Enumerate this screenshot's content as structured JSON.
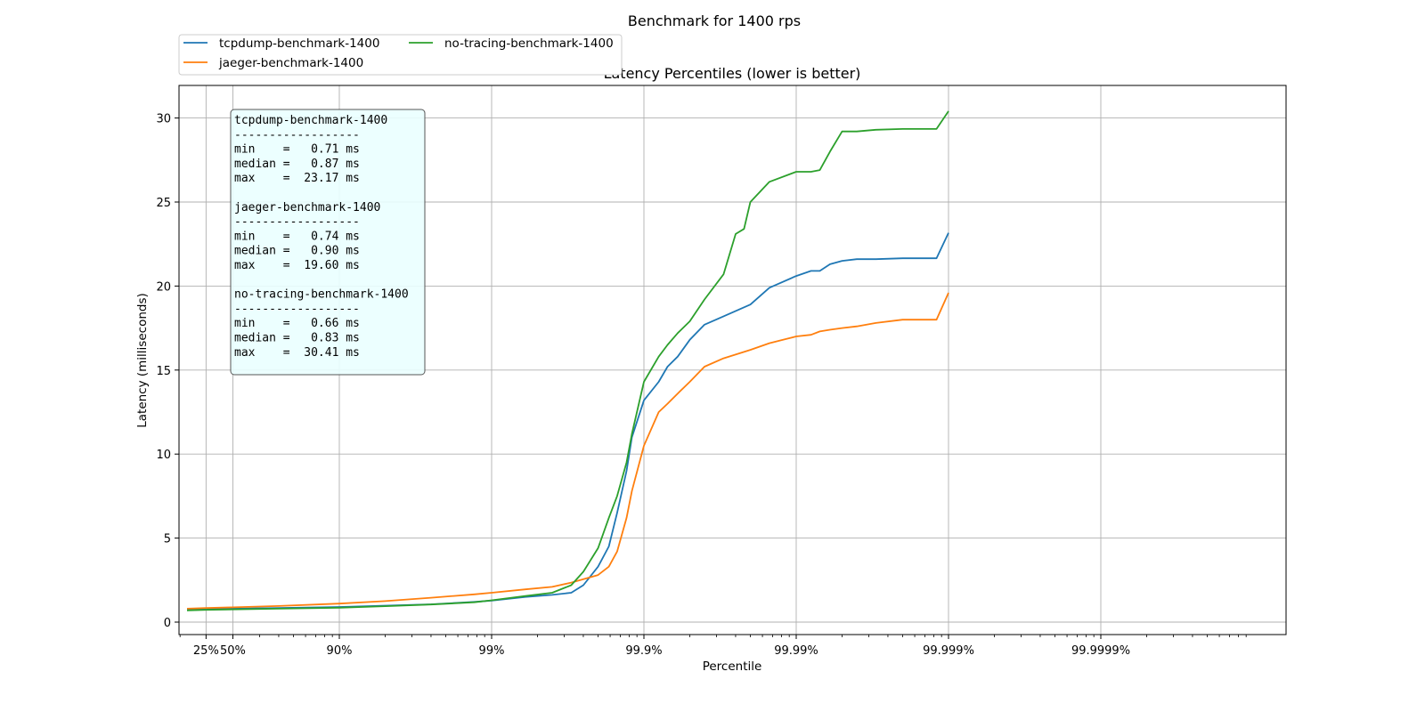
{
  "chart_data": {
    "type": "line",
    "title": "Benchmark for 1400 rps",
    "subtitle": "Latency Percentiles (lower is better)",
    "xlabel": "Percentile",
    "ylabel": "Latency (milliseconds)",
    "x_scale": "log of 1/(1 - percentile)",
    "x_ticks": [
      "25%",
      "50%",
      "90%",
      "99%",
      "99.9%",
      "99.99%",
      "99.999%",
      "99.9999%"
    ],
    "y_ticks": [
      "0",
      "5",
      "10",
      "15",
      "20",
      "25",
      "30"
    ],
    "ylim": [
      -0.8,
      32
    ],
    "grid": true,
    "legend_position": "top-left, above plot, 2 columns",
    "series": [
      {
        "name": "tcpdump-benchmark-1400",
        "color": "#1f77b4",
        "points": [
          [
            "0%",
            0.75
          ],
          [
            "25%",
            0.78
          ],
          [
            "50%",
            0.8
          ],
          [
            "75%",
            0.84
          ],
          [
            "90%",
            0.9
          ],
          [
            "95%",
            0.98
          ],
          [
            "97.5%",
            1.06
          ],
          [
            "98.7%",
            1.2
          ],
          [
            "99%",
            1.28
          ],
          [
            "99.4%",
            1.5
          ],
          [
            "99.6%",
            1.62
          ],
          [
            "99.7%",
            1.75
          ],
          [
            "99.75%",
            2.2
          ],
          [
            "99.8%",
            3.3
          ],
          [
            "99.83%",
            4.5
          ],
          [
            "99.85%",
            6.5
          ],
          [
            "99.87%",
            9.0
          ],
          [
            "99.88%",
            11.0
          ],
          [
            "99.9%",
            13.2
          ],
          [
            "99.92%",
            14.3
          ],
          [
            "99.93%",
            15.2
          ],
          [
            "99.94%",
            15.8
          ],
          [
            "99.95%",
            16.8
          ],
          [
            "99.96%",
            17.7
          ],
          [
            "99.97%",
            18.2
          ],
          [
            "99.98%",
            18.9
          ],
          [
            "99.985%",
            19.9
          ],
          [
            "99.99%",
            20.6
          ],
          [
            "99.992%",
            20.9
          ],
          [
            "99.993%",
            20.9
          ],
          [
            "99.994%",
            21.3
          ],
          [
            "99.995%",
            21.5
          ],
          [
            "99.996%",
            21.6
          ],
          [
            "99.997%",
            21.6
          ],
          [
            "99.998%",
            21.65
          ],
          [
            "99.9988%",
            21.65
          ],
          [
            "99.999%",
            23.17
          ]
        ]
      },
      {
        "name": "jaeger-benchmark-1400",
        "color": "#ff7f0e",
        "points": [
          [
            "0%",
            0.8
          ],
          [
            "25%",
            0.84
          ],
          [
            "50%",
            0.88
          ],
          [
            "75%",
            0.96
          ],
          [
            "90%",
            1.1
          ],
          [
            "95%",
            1.25
          ],
          [
            "97.5%",
            1.45
          ],
          [
            "98.7%",
            1.65
          ],
          [
            "99%",
            1.75
          ],
          [
            "99.4%",
            1.95
          ],
          [
            "99.6%",
            2.1
          ],
          [
            "99.7%",
            2.35
          ],
          [
            "99.8%",
            2.8
          ],
          [
            "99.83%",
            3.3
          ],
          [
            "99.85%",
            4.2
          ],
          [
            "99.87%",
            6.2
          ],
          [
            "99.88%",
            7.8
          ],
          [
            "99.9%",
            10.5
          ],
          [
            "99.92%",
            12.5
          ],
          [
            "99.93%",
            13.0
          ],
          [
            "99.94%",
            13.6
          ],
          [
            "99.95%",
            14.3
          ],
          [
            "99.96%",
            15.2
          ],
          [
            "99.97%",
            15.7
          ],
          [
            "99.98%",
            16.2
          ],
          [
            "99.985%",
            16.6
          ],
          [
            "99.99%",
            17.0
          ],
          [
            "99.992%",
            17.1
          ],
          [
            "99.993%",
            17.3
          ],
          [
            "99.994%",
            17.4
          ],
          [
            "99.995%",
            17.5
          ],
          [
            "99.996%",
            17.6
          ],
          [
            "99.997%",
            17.8
          ],
          [
            "99.998%",
            18.0
          ],
          [
            "99.9988%",
            18.0
          ],
          [
            "99.999%",
            19.6
          ]
        ]
      },
      {
        "name": "no-tracing-benchmark-1400",
        "color": "#2ca02c",
        "points": [
          [
            "0%",
            0.7
          ],
          [
            "25%",
            0.73
          ],
          [
            "50%",
            0.76
          ],
          [
            "75%",
            0.8
          ],
          [
            "90%",
            0.86
          ],
          [
            "95%",
            0.95
          ],
          [
            "97.5%",
            1.05
          ],
          [
            "98.7%",
            1.18
          ],
          [
            "99%",
            1.3
          ],
          [
            "99.4%",
            1.55
          ],
          [
            "99.6%",
            1.75
          ],
          [
            "99.7%",
            2.2
          ],
          [
            "99.75%",
            3.0
          ],
          [
            "99.8%",
            4.4
          ],
          [
            "99.83%",
            6.2
          ],
          [
            "99.85%",
            7.5
          ],
          [
            "99.87%",
            9.5
          ],
          [
            "99.88%",
            11.2
          ],
          [
            "99.9%",
            14.3
          ],
          [
            "99.92%",
            15.8
          ],
          [
            "99.93%",
            16.5
          ],
          [
            "99.94%",
            17.2
          ],
          [
            "99.95%",
            17.9
          ],
          [
            "99.96%",
            19.2
          ],
          [
            "99.97%",
            20.7
          ],
          [
            "99.975%",
            23.1
          ],
          [
            "99.978%",
            23.4
          ],
          [
            "99.98%",
            25.0
          ],
          [
            "99.985%",
            26.2
          ],
          [
            "99.99%",
            26.8
          ],
          [
            "99.992%",
            26.8
          ],
          [
            "99.993%",
            26.9
          ],
          [
            "99.994%",
            28.0
          ],
          [
            "99.995%",
            29.2
          ],
          [
            "99.996%",
            29.2
          ],
          [
            "99.997%",
            29.3
          ],
          [
            "99.998%",
            29.35
          ],
          [
            "99.9988%",
            29.35
          ],
          [
            "99.999%",
            30.41
          ]
        ]
      }
    ],
    "stats_box": [
      {
        "name": "tcpdump-benchmark-1400",
        "separator": "------------------",
        "min": "min    =   0.71 ms",
        "median": "median =   0.87 ms",
        "max": "max    =  23.17 ms"
      },
      {
        "name": "jaeger-benchmark-1400",
        "separator": "------------------",
        "min": "min    =   0.74 ms",
        "median": "median =   0.90 ms",
        "max": "max    =  19.60 ms"
      },
      {
        "name": "no-tracing-benchmark-1400",
        "separator": "------------------",
        "min": "min    =   0.66 ms",
        "median": "median =   0.83 ms",
        "max": "max    =  30.41 ms"
      }
    ]
  }
}
